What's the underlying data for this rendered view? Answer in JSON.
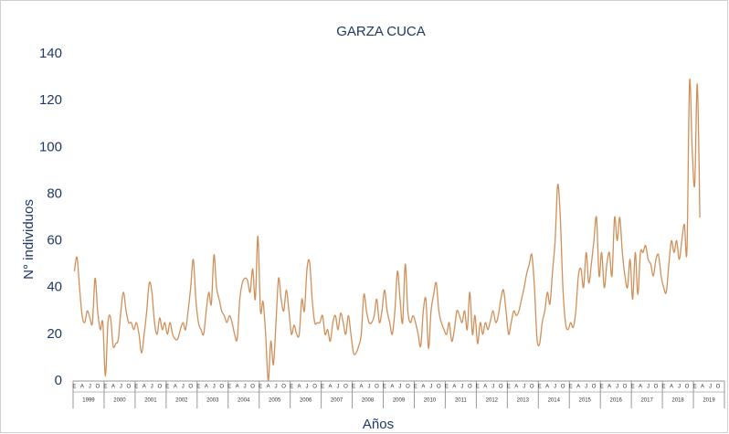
{
  "chart_data": {
    "type": "line",
    "title": "GARZA CUCA",
    "ylabel": "N° individuos",
    "xlabel": "Años",
    "color": "#d0905a",
    "ylim": [
      0,
      140
    ],
    "yticks": [
      0,
      20,
      40,
      60,
      80,
      100,
      120,
      140
    ],
    "month_labels": [
      "E",
      "A",
      "J",
      "O"
    ],
    "years": [
      {
        "label": "1999",
        "values": [
          47,
          53,
          40,
          28,
          25,
          30,
          27,
          25,
          44,
          30,
          22,
          25
        ]
      },
      {
        "label": "2000",
        "values": [
          2,
          25,
          27,
          15,
          16,
          18,
          30,
          38,
          30,
          25,
          25,
          22
        ]
      },
      {
        "label": "2001",
        "values": [
          25,
          20,
          12,
          20,
          30,
          42,
          38,
          25,
          20,
          27,
          22,
          25
        ]
      },
      {
        "label": "2002",
        "values": [
          20,
          25,
          20,
          18,
          18,
          22,
          25,
          22,
          30,
          40,
          52,
          35
        ]
      },
      {
        "label": "2003",
        "values": [
          25,
          22,
          20,
          30,
          38,
          33,
          54,
          40,
          35,
          30,
          28,
          25
        ]
      },
      {
        "label": "2004",
        "values": [
          28,
          25,
          20,
          18,
          35,
          42,
          44,
          43,
          38,
          48,
          35,
          62
        ]
      },
      {
        "label": "2005",
        "values": [
          30,
          34,
          20,
          0,
          17,
          7,
          25,
          44,
          35,
          30,
          39,
          30
        ]
      },
      {
        "label": "2006",
        "values": [
          20,
          24,
          20,
          20,
          35,
          30,
          48,
          51,
          35,
          25,
          25,
          25
        ]
      },
      {
        "label": "2007",
        "values": [
          28,
          20,
          22,
          17,
          25,
          28,
          22,
          29,
          25,
          20,
          28,
          20
        ]
      },
      {
        "label": "2008",
        "values": [
          12,
          12,
          15,
          20,
          37,
          30,
          25,
          25,
          28,
          35,
          25,
          30
        ]
      },
      {
        "label": "2009",
        "values": [
          39,
          30,
          25,
          20,
          30,
          47,
          35,
          25,
          50,
          30,
          25,
          28
        ]
      },
      {
        "label": "2010",
        "values": [
          25,
          20,
          15,
          30,
          35,
          14,
          30,
          37,
          42,
          30,
          25,
          22
        ]
      },
      {
        "label": "2011",
        "values": [
          20,
          25,
          17,
          22,
          30,
          28,
          25,
          30,
          22,
          38,
          20,
          28
        ]
      },
      {
        "label": "2012",
        "values": [
          16,
          25,
          20,
          25,
          22,
          26,
          30,
          25,
          28,
          35,
          39,
          30
        ]
      },
      {
        "label": "2013",
        "values": [
          20,
          25,
          30,
          28,
          30,
          35,
          40,
          46,
          50,
          54,
          40,
          18
        ]
      },
      {
        "label": "2014",
        "values": [
          16,
          25,
          30,
          38,
          33,
          47,
          60,
          84,
          70,
          40,
          25,
          22
        ]
      },
      {
        "label": "2015",
        "values": [
          25,
          23,
          30,
          45,
          48,
          40,
          55,
          42,
          50,
          60,
          70,
          45
        ]
      },
      {
        "label": "2016",
        "values": [
          55,
          40,
          50,
          55,
          45,
          70,
          60,
          70,
          55,
          45,
          40,
          52
        ]
      },
      {
        "label": "2017",
        "values": [
          35,
          55,
          37,
          55,
          55,
          58,
          52,
          50,
          45,
          52,
          54,
          45
        ]
      },
      {
        "label": "2018",
        "values": [
          40,
          38,
          50,
          60,
          55,
          60,
          52,
          60,
          67,
          56,
          128,
          100
        ]
      },
      {
        "label": "2019",
        "values": [
          84,
          127,
          70
        ]
      }
    ]
  }
}
